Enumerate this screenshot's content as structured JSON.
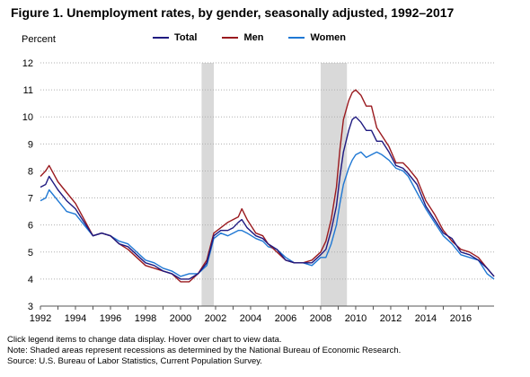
{
  "title": "Figure 1. Unemployment rates, by gender, seasonally adjusted, 1992–2017",
  "notes": [
    "Click legend items to change data display. Hover over chart to view data.",
    "Note: Shaded areas represent recessions as determined by the National Bureau of Economic Research.",
    "Source: U.S. Bureau of Labor Statistics, Current Population Survey."
  ],
  "chart_data": {
    "type": "line",
    "title": "Figure 1. Unemployment rates, by gender, seasonally adjusted, 1992–2017",
    "ylabel": "Percent",
    "xlabel": "",
    "xlim": [
      1992,
      2017.9
    ],
    "ylim": [
      3,
      12
    ],
    "yticks": [
      3,
      4,
      5,
      6,
      7,
      8,
      9,
      10,
      11,
      12
    ],
    "xticks": [
      "1992",
      "1994",
      "1996",
      "1998",
      "2000",
      "2002",
      "2004",
      "2006",
      "2008",
      "2010",
      "2012",
      "2014",
      "2016"
    ],
    "grid": "horizontal dotted",
    "legend_position": "top",
    "recessions": [
      [
        2001.2,
        2001.9
      ],
      [
        2008.0,
        2009.5
      ]
    ],
    "x": [
      1992.0,
      1992.3,
      1992.5,
      1993.0,
      1993.5,
      1994.0,
      1994.5,
      1995.0,
      1995.5,
      1996.0,
      1996.5,
      1997.0,
      1997.5,
      1998.0,
      1998.5,
      1999.0,
      1999.5,
      2000.0,
      2000.5,
      2001.0,
      2001.5,
      2001.9,
      2002.3,
      2002.7,
      2003.0,
      2003.3,
      2003.5,
      2003.8,
      2004.3,
      2004.7,
      2005.0,
      2005.5,
      2006.0,
      2006.5,
      2007.0,
      2007.5,
      2008.0,
      2008.3,
      2008.6,
      2008.9,
      2009.1,
      2009.3,
      2009.6,
      2009.8,
      2010.0,
      2010.3,
      2010.6,
      2010.9,
      2011.2,
      2011.5,
      2011.9,
      2012.3,
      2012.7,
      2013.0,
      2013.5,
      2014.0,
      2014.5,
      2015.0,
      2015.5,
      2016.0,
      2016.5,
      2017.0,
      2017.5,
      2017.9
    ],
    "series": [
      {
        "name": "Total",
        "color": "#1f1a80",
        "values": [
          7.4,
          7.5,
          7.8,
          7.3,
          6.9,
          6.6,
          6.1,
          5.6,
          5.7,
          5.6,
          5.3,
          5.2,
          4.9,
          4.6,
          4.5,
          4.3,
          4.2,
          4.0,
          4.0,
          4.2,
          4.6,
          5.6,
          5.8,
          5.8,
          5.9,
          6.1,
          6.2,
          5.9,
          5.6,
          5.5,
          5.3,
          5.1,
          4.7,
          4.6,
          4.6,
          4.6,
          4.9,
          5.1,
          5.8,
          6.7,
          7.8,
          8.7,
          9.5,
          9.9,
          10.0,
          9.8,
          9.5,
          9.5,
          9.1,
          9.1,
          8.7,
          8.2,
          8.1,
          7.9,
          7.5,
          6.7,
          6.2,
          5.7,
          5.5,
          5.0,
          4.9,
          4.7,
          4.4,
          4.1
        ]
      },
      {
        "name": "Men",
        "color": "#9a1a1f",
        "values": [
          7.8,
          8.0,
          8.2,
          7.6,
          7.2,
          6.8,
          6.2,
          5.6,
          5.7,
          5.6,
          5.3,
          5.1,
          4.8,
          4.5,
          4.4,
          4.3,
          4.2,
          3.9,
          3.9,
          4.2,
          4.7,
          5.7,
          5.9,
          6.1,
          6.2,
          6.3,
          6.6,
          6.2,
          5.7,
          5.6,
          5.3,
          5.0,
          4.7,
          4.6,
          4.6,
          4.7,
          5.0,
          5.4,
          6.2,
          7.4,
          8.8,
          9.9,
          10.6,
          10.9,
          11.0,
          10.8,
          10.4,
          10.4,
          9.6,
          9.3,
          8.9,
          8.3,
          8.3,
          8.1,
          7.7,
          6.9,
          6.4,
          5.8,
          5.4,
          5.1,
          5.0,
          4.8,
          4.4,
          4.1
        ]
      },
      {
        "name": "Women",
        "color": "#1f78d4",
        "values": [
          6.9,
          7.0,
          7.3,
          6.9,
          6.5,
          6.4,
          6.0,
          5.6,
          5.7,
          5.6,
          5.4,
          5.3,
          5.0,
          4.7,
          4.6,
          4.4,
          4.3,
          4.1,
          4.2,
          4.2,
          4.5,
          5.5,
          5.7,
          5.6,
          5.7,
          5.8,
          5.8,
          5.7,
          5.5,
          5.4,
          5.2,
          5.1,
          4.8,
          4.6,
          4.6,
          4.5,
          4.8,
          4.8,
          5.3,
          6.0,
          6.8,
          7.5,
          8.1,
          8.4,
          8.6,
          8.7,
          8.5,
          8.6,
          8.7,
          8.6,
          8.4,
          8.1,
          8.0,
          7.8,
          7.2,
          6.6,
          6.1,
          5.6,
          5.3,
          4.9,
          4.8,
          4.7,
          4.2,
          4.0
        ]
      }
    ]
  }
}
